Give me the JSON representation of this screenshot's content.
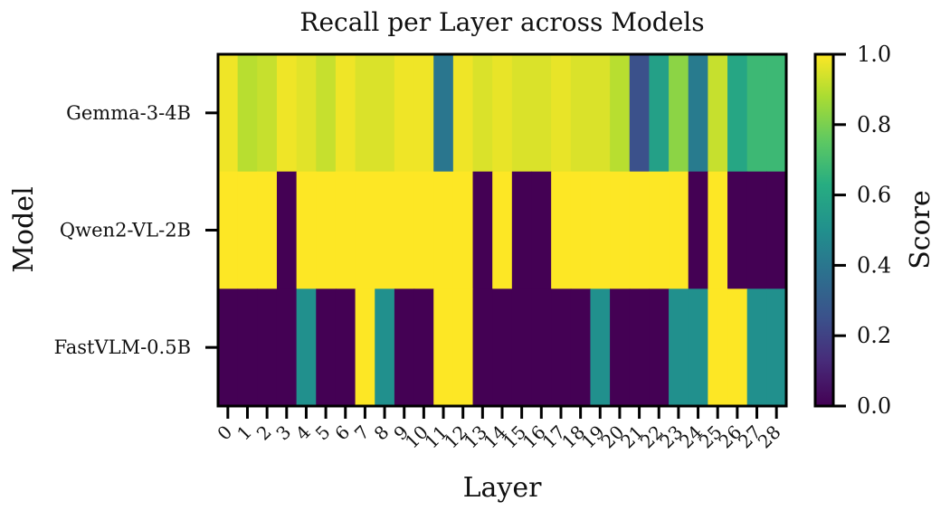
{
  "chart_data": {
    "type": "heatmap",
    "title": "Recall per Layer across Models",
    "xlabel": "Layer",
    "ylabel": "Model",
    "rows": [
      "Gemma-3-4B",
      "Qwen2-VL-2B",
      "FastVLM-0.5B"
    ],
    "columns": [
      "0",
      "1",
      "2",
      "3",
      "4",
      "5",
      "6",
      "7",
      "8",
      "9",
      "10",
      "11",
      "12",
      "13",
      "14",
      "15",
      "16",
      "17",
      "18",
      "19",
      "20",
      "21",
      "22",
      "23",
      "24",
      "25",
      "26",
      "27",
      "28"
    ],
    "values": [
      [
        0.98,
        0.9,
        0.92,
        0.98,
        0.96,
        0.92,
        0.98,
        0.95,
        0.95,
        0.98,
        0.98,
        0.4,
        0.98,
        0.95,
        0.97,
        0.95,
        0.95,
        0.97,
        0.95,
        0.95,
        0.9,
        0.25,
        0.57,
        0.83,
        0.42,
        0.92,
        0.6,
        0.68,
        0.68
      ],
      [
        1.0,
        1.0,
        1.0,
        0.0,
        1.0,
        1.0,
        1.0,
        1.0,
        1.0,
        1.0,
        1.0,
        1.0,
        1.0,
        0.0,
        1.0,
        0.0,
        0.0,
        1.0,
        1.0,
        1.0,
        1.0,
        1.0,
        1.0,
        1.0,
        0.0,
        1.0,
        0.0,
        0.0,
        0.0
      ],
      [
        0.0,
        0.0,
        0.0,
        0.0,
        0.5,
        0.0,
        0.0,
        1.0,
        0.5,
        0.0,
        0.0,
        1.0,
        1.0,
        0.0,
        0.0,
        0.0,
        0.0,
        0.0,
        0.0,
        0.5,
        0.0,
        0.0,
        0.0,
        0.5,
        0.5,
        1.0,
        1.0,
        0.5,
        0.5
      ]
    ],
    "colormap": "viridis",
    "vmin": 0.0,
    "vmax": 1.0,
    "colorbar": {
      "label": "Score",
      "ticks": [
        "0.0",
        "0.2",
        "0.4",
        "0.6",
        "0.8",
        "1.0"
      ]
    },
    "grid": false
  }
}
